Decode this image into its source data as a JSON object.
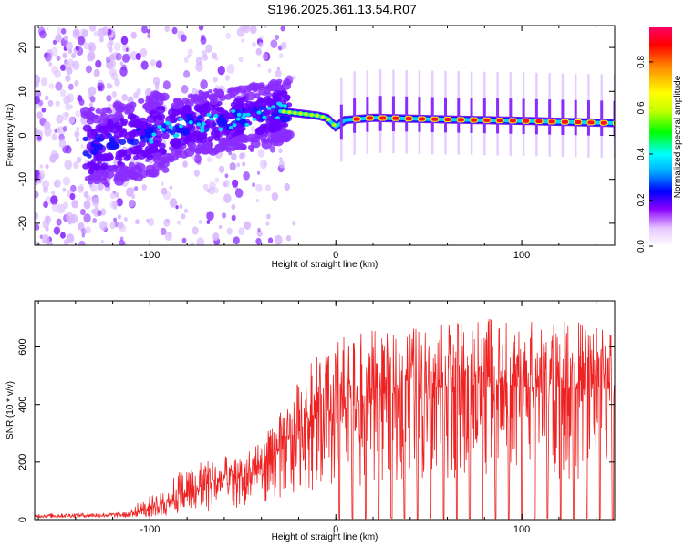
{
  "title": "S196.2025.361.13.54.R07",
  "chart_data": [
    {
      "type": "heatmap",
      "name": "spectrogram",
      "xlabel": "Height of straight line (km)",
      "ylabel": "Frequency (Hz)",
      "xlim": [
        -162,
        150
      ],
      "ylim": [
        -25,
        25
      ],
      "xticks": [
        -100,
        0,
        100
      ],
      "yticks": [
        -20,
        -10,
        0,
        10,
        20
      ],
      "xtick_labels": [
        "-100",
        "0",
        "100"
      ],
      "ytick_labels": [
        "-20",
        "-10",
        "0",
        "10",
        "20"
      ],
      "ridge_frequency_hz": {
        "x": [
          -130,
          -100,
          -80,
          -60,
          -40,
          -30,
          -20,
          -10,
          -5,
          0,
          5,
          20,
          50,
          100,
          150
        ],
        "y": [
          -3,
          0,
          2.5,
          3.5,
          4.5,
          5.5,
          5,
          4.5,
          4,
          2,
          3.5,
          4,
          3.7,
          3.3,
          2.8
        ]
      },
      "colorbar": {
        "label": "Normalized spectral amplitude",
        "range": [
          0,
          0.95
        ],
        "ticks": [
          0.0,
          0.2,
          0.4,
          0.6,
          0.8
        ],
        "tick_labels": [
          "0.0",
          "0.2",
          "0.4",
          "0.6",
          "0.8"
        ],
        "colors": [
          "#ffffff",
          "#e8c8ff",
          "#8a00ff",
          "#0000ff",
          "#00aaff",
          "#00ffff",
          "#00ff00",
          "#c8ff00",
          "#ffff00",
          "#ff8800",
          "#ff0000",
          "#ff0066"
        ]
      }
    },
    {
      "type": "line",
      "name": "snr",
      "xlabel": "Height of straight line (km)",
      "ylabel": "SNR (10 * v/v)",
      "xlim": [
        -162,
        150
      ],
      "ylim": [
        0,
        760
      ],
      "xticks": [
        -100,
        0,
        100
      ],
      "yticks": [
        0,
        200,
        400,
        600
      ],
      "xtick_labels": [
        "-100",
        "0",
        "100"
      ],
      "ytick_labels": [
        "0",
        "200",
        "400",
        "600"
      ],
      "color": "#ee2222",
      "envelope": {
        "x": [
          -162,
          -110,
          -95,
          -80,
          -60,
          -45,
          -35,
          -25,
          -15,
          -5,
          0,
          10,
          20,
          25,
          40,
          60,
          80,
          100,
          120,
          150
        ],
        "base": [
          15,
          20,
          40,
          80,
          120,
          150,
          200,
          270,
          340,
          360,
          380,
          380,
          400,
          430,
          455,
          460,
          460,
          460,
          455,
          450
        ],
        "peak": [
          35,
          45,
          100,
          200,
          220,
          240,
          320,
          420,
          550,
          600,
          640,
          640,
          660,
          650,
          670,
          680,
          700,
          690,
          690,
          690
        ]
      },
      "dropouts_x": [
        0,
        7,
        14,
        21,
        28,
        35,
        42,
        49,
        56,
        63,
        70,
        77,
        84,
        91,
        98,
        105,
        112,
        119,
        126,
        133,
        140,
        147
      ]
    }
  ]
}
